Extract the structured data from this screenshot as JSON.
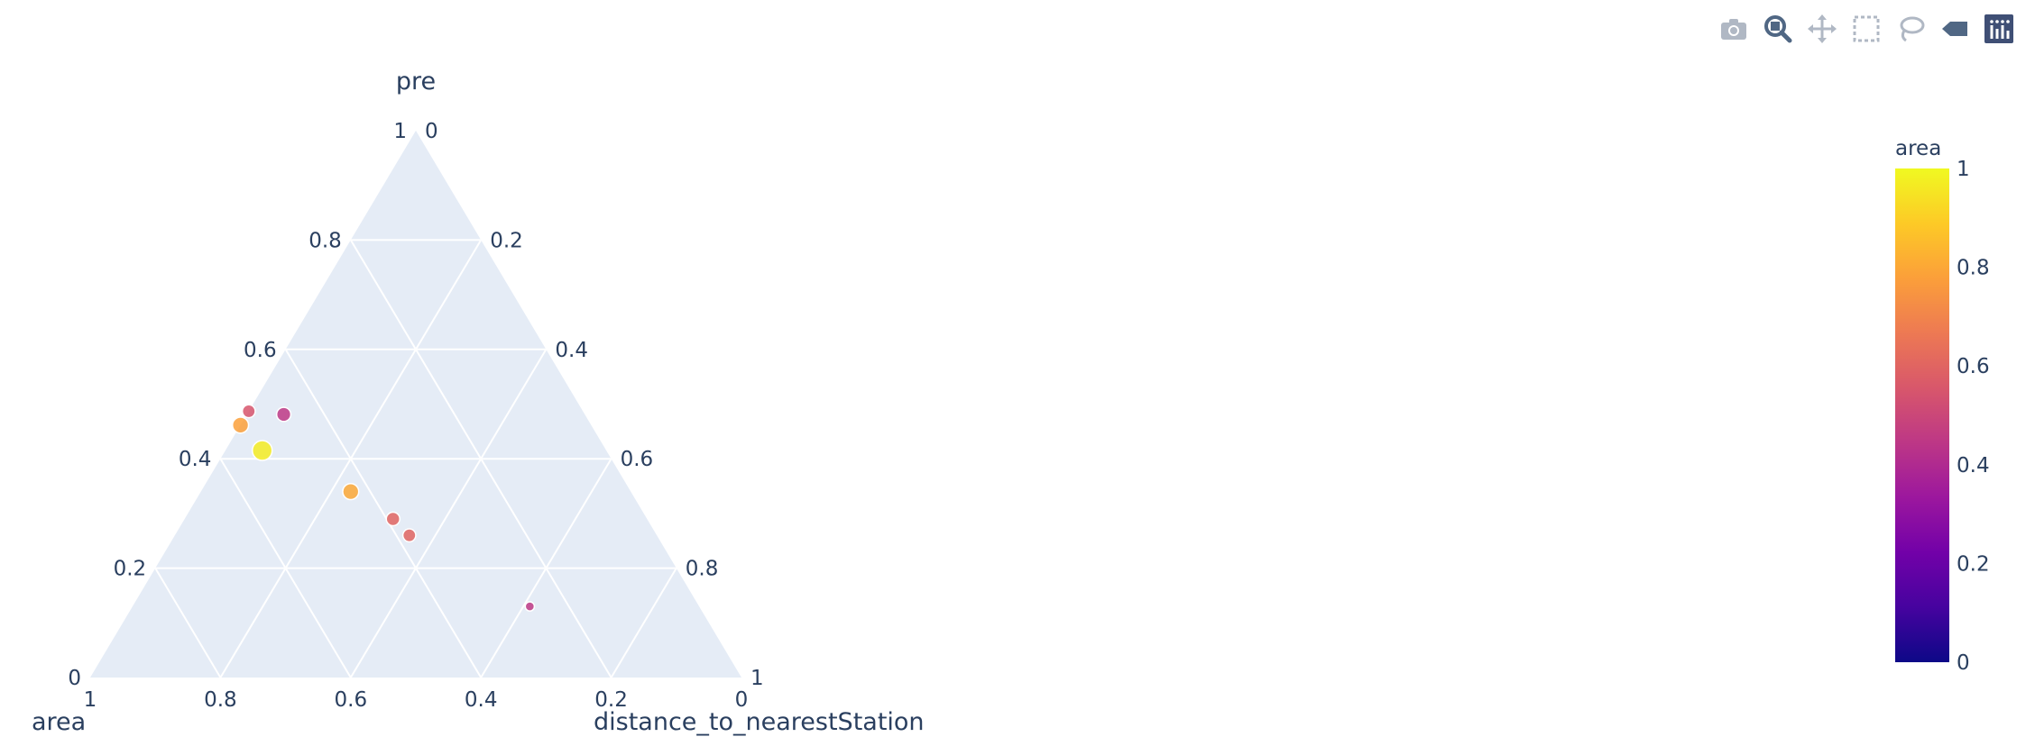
{
  "toolbar": {
    "buttons": [
      {
        "name": "camera-icon",
        "color": "#b0b8c4"
      },
      {
        "name": "zoom-icon",
        "color": "#506784"
      },
      {
        "name": "pan-icon",
        "color": "#b0b8c4"
      },
      {
        "name": "box-select-icon",
        "color": "#b0b8c4"
      },
      {
        "name": "lasso-icon",
        "color": "#b0b8c4"
      },
      {
        "name": "reset-icon",
        "color": "#506784"
      },
      {
        "name": "plotly-logo-icon",
        "color": "#3f4f75"
      }
    ]
  },
  "chart_data": {
    "type": "scatter_ternary",
    "axes": {
      "a": {
        "title": "pre",
        "ticks": [
          "0",
          "0.2",
          "0.4",
          "0.6",
          "0.8",
          "1"
        ]
      },
      "b": {
        "title": "area",
        "ticks": [
          "0",
          "0.2",
          "0.4",
          "0.6",
          "0.8",
          "1"
        ]
      },
      "c": {
        "title": "distance_to_nearestStation",
        "ticks": [
          "0",
          "0.2",
          "0.4",
          "0.6",
          "0.8",
          "1"
        ]
      }
    },
    "grid": true,
    "background": "#e5ecf6",
    "points": [
      {
        "pre": 0.56,
        "area": 0.59,
        "distance_to_nearestStation": 0.0,
        "color_value": 0.55,
        "size": 0.45
      },
      {
        "pre": 0.54,
        "area": 0.63,
        "distance_to_nearestStation": 0.0,
        "color_value": 0.78,
        "size": 0.7
      },
      {
        "pre": 0.51,
        "area": 0.49,
        "distance_to_nearestStation": 0.06,
        "color_value": 0.45,
        "size": 0.55
      },
      {
        "pre": 0.44,
        "area": 0.56,
        "distance_to_nearestStation": 0.06,
        "color_value": 0.97,
        "size": 1.0
      },
      {
        "pre": 0.34,
        "area": 0.43,
        "distance_to_nearestStation": 0.23,
        "color_value": 0.8,
        "size": 0.7
      },
      {
        "pre": 0.29,
        "area": 0.39,
        "distance_to_nearestStation": 0.32,
        "color_value": 0.6,
        "size": 0.5
      },
      {
        "pre": 0.26,
        "area": 0.38,
        "distance_to_nearestStation": 0.36,
        "color_value": 0.6,
        "size": 0.45
      },
      {
        "pre": 0.13,
        "area": 0.26,
        "distance_to_nearestStation": 0.61,
        "color_value": 0.45,
        "size": 0.15
      }
    ],
    "colorbar": {
      "title": "area",
      "range": [
        0,
        1
      ],
      "ticks": [
        "0",
        "0.2",
        "0.4",
        "0.6",
        "0.8",
        "1"
      ],
      "colorscale": [
        "#0d0887",
        "#46039f",
        "#7201a8",
        "#9c179e",
        "#bd3786",
        "#d8576b",
        "#ed7953",
        "#fb9f3a",
        "#fdca26",
        "#f0f921"
      ]
    }
  }
}
